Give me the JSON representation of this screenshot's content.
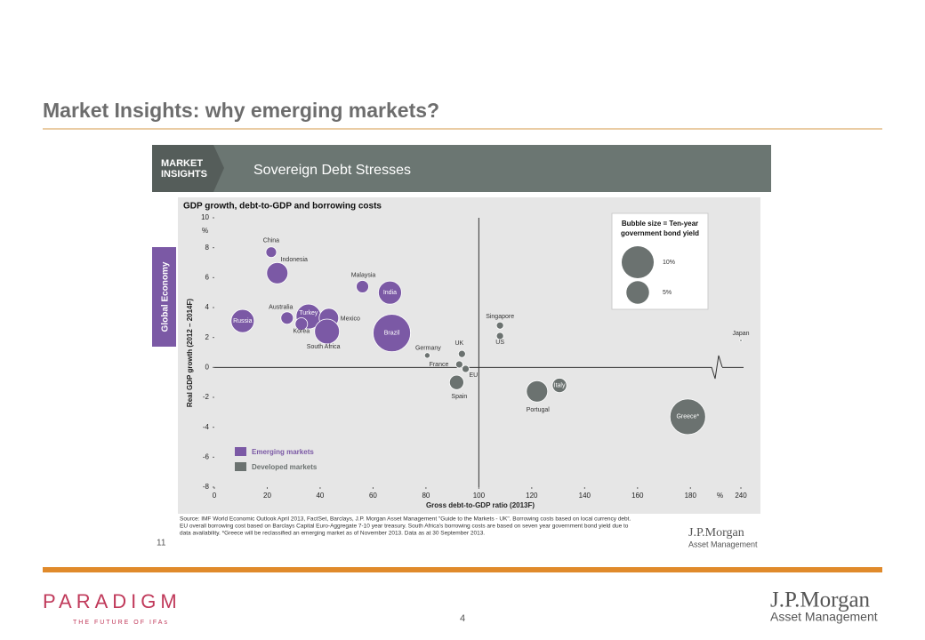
{
  "slide": {
    "title": "Market Insights: why emerging markets?",
    "badge_line1": "MARKET",
    "badge_line2": "INSIGHTS",
    "banner_title": "Sovereign Debt Stresses",
    "side_tab": "Global Economy",
    "source_line1": "Source: IMF World Economic Outlook April 2013, FactSet, Barclays, J.P. Morgan Asset Management \"Guide to the Markets - UK\". Borrowing costs based on local currency debt.",
    "source_line2": "EU overall borrowing cost based on Barclays Capital Euro-Aggregate 7-10 year treasury. South Africa's borrowing costs are based on seven year government bond yield due to",
    "source_line3": "data availability. *Greece will be reclassified an emerging market as of November 2013. Data as at 30 September 2013.",
    "slide_number": "11",
    "inner_logo": "J.P.Morgan",
    "inner_logo_sub": "Asset Management",
    "footer_logo": "PARADIGM",
    "footer_tagline": "THE FUTURE OF IFAs",
    "page_number": "4",
    "footer_jpm": "J.P.Morgan",
    "footer_jpm_sub": "Asset Management"
  },
  "chart_data": {
    "type": "bubble",
    "title": "GDP growth, debt-to-GDP and borrowing costs",
    "x_label": "Gross debt-to-GDP ratio (2013F)",
    "y_label": "Real GDP growth (2012 – 2014F)",
    "x_unit": "%",
    "y_unit": "%",
    "xlim": [
      0,
      240
    ],
    "x_break": [
      190,
      230
    ],
    "xticks": [
      0,
      20,
      40,
      60,
      80,
      100,
      120,
      140,
      160,
      180,
      240
    ],
    "ylim": [
      -8,
      10
    ],
    "yticks": [
      -8,
      -6,
      -4,
      -2,
      0,
      2,
      4,
      6,
      8,
      10
    ],
    "reference_lines": {
      "x": 100,
      "y": 0
    },
    "size_legend_title_line1": "Bubble size = Ten-year",
    "size_legend_title_line2": "government bond yield",
    "size_legend": [
      {
        "value": 10,
        "label": "10%"
      },
      {
        "value": 5,
        "label": "5%"
      }
    ],
    "series": [
      {
        "name": "Emerging markets",
        "color": "#7b59a5",
        "labels": [
          "Russia",
          "China",
          "Indonesia",
          "Malaysia",
          "India",
          "Australia",
          "Turkey",
          "Korea",
          "Mexico",
          "South Africa",
          "Brazil"
        ],
        "x": [
          10.7,
          21.5,
          23.8,
          56,
          66.4,
          27.5,
          35.6,
          32.9,
          43.3,
          42.6,
          67.1
        ],
        "y": [
          3.1,
          7.7,
          6.3,
          5.4,
          5.0,
          3.3,
          3.4,
          2.9,
          3.3,
          2.4,
          2.3
        ],
        "sizes": [
          5.2,
          1.1,
          4.4,
          1.5,
          5.2,
          1.5,
          6,
          1.5,
          3.7,
          6,
          13.6
        ]
      },
      {
        "name": "Developed markets",
        "color": "#6b7270",
        "labels": [
          "Germany",
          "France",
          "UK",
          "EU",
          "Spain",
          "Singapore",
          "US",
          "Portugal",
          "Italy",
          "Greece*",
          "Japan"
        ],
        "x": [
          80.5,
          92.6,
          93.6,
          95,
          91.6,
          108,
          108,
          122,
          130.5,
          179,
          240
        ],
        "y": [
          0.8,
          0.2,
          0.9,
          -0.1,
          -1.0,
          2.8,
          2.1,
          -1.6,
          -1.2,
          -3.3,
          1.8
        ],
        "sizes": [
          0.3,
          0.5,
          0.5,
          0.5,
          2,
          0.5,
          0.5,
          4.4,
          2,
          12.3,
          0.05
        ]
      }
    ]
  }
}
